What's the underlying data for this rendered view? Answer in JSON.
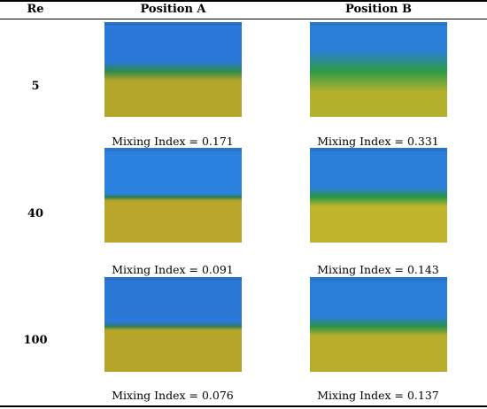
{
  "table": {
    "headers": {
      "re": "Re",
      "position_a": "Position A",
      "position_b": "Position B"
    },
    "rows": [
      {
        "re": "5",
        "a": {
          "mixing_index": "Mixing Index = 0.171",
          "top_color": "#2a78d8",
          "interface_color": "#2f8a4a",
          "bottom_color": "#b3a62a",
          "interface_sharpness": "soft"
        },
        "b": {
          "mixing_index": "Mixing Index = 0.331",
          "top_color": "#2a7fd6",
          "interface_color": "#2f9a46",
          "bottom_color": "#b4b22c",
          "interface_sharpness": "diffuse"
        }
      },
      {
        "re": "40",
        "a": {
          "mixing_index": "Mixing Index = 0.091",
          "top_color": "#2b82de",
          "interface_color": "#2d7e52",
          "bottom_color": "#b9a62a",
          "interface_sharpness": "sharp"
        },
        "b": {
          "mixing_index": "Mixing Index = 0.143",
          "top_color": "#2a7ed8",
          "interface_color": "#2a9645",
          "bottom_color": "#c0b42c",
          "interface_sharpness": "soft"
        }
      },
      {
        "re": "100",
        "a": {
          "mixing_index": "Mixing Index = 0.076",
          "top_color": "#2b78d6",
          "interface_color": "#2e7c50",
          "bottom_color": "#b4a42a",
          "interface_sharpness": "sharp"
        },
        "b": {
          "mixing_index": "Mixing Index = 0.137",
          "top_color": "#2a7ed8",
          "interface_color": "#2c9248",
          "bottom_color": "#b8ae2c",
          "interface_sharpness": "soft"
        }
      }
    ]
  }
}
